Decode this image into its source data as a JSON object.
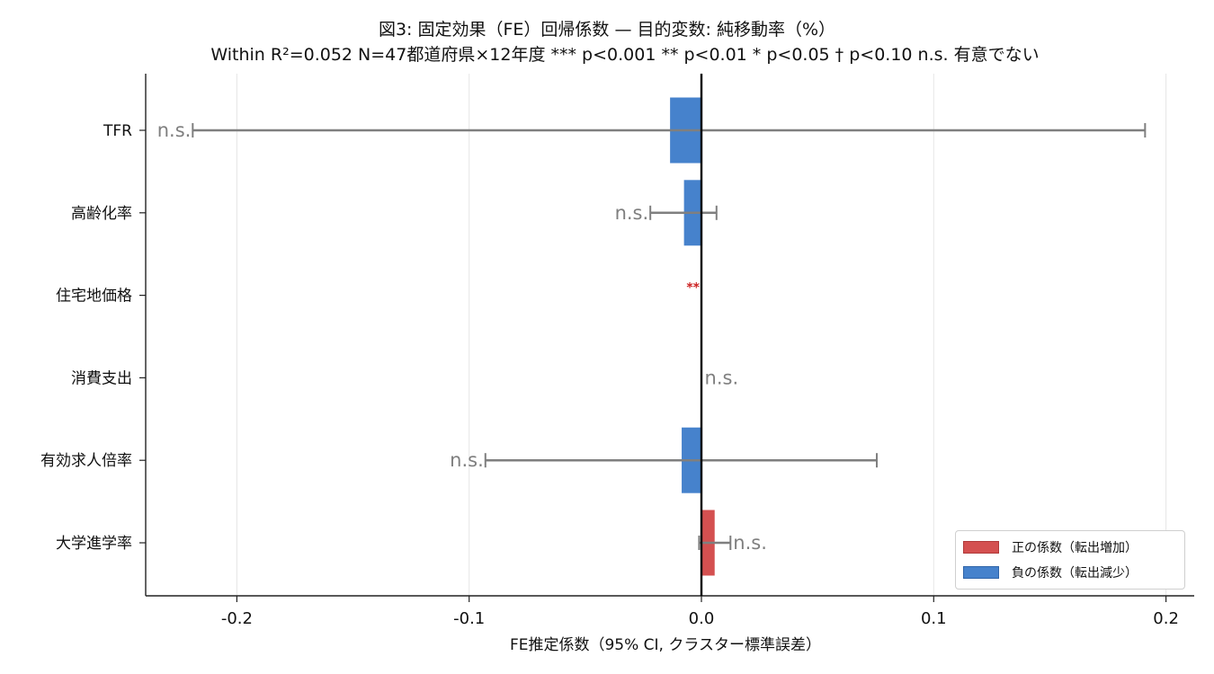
{
  "chart_data": {
    "type": "bar",
    "orientation": "horizontal",
    "title": "図3: 固定効果（FE）回帰係数 — 目的変数: 純移動率（%）",
    "subtitle": "Within R²=0.052  N=47都道府県×12年度  *** p<0.001  ** p<0.01  * p<0.05  † p<0.10  n.s. 有意でない",
    "xlabel": "FE推定係数（95% CI, クラスター標準誤差）",
    "ylabel": "",
    "xlim": [
      -0.24,
      0.21
    ],
    "xticks": [
      -0.2,
      -0.1,
      0.0,
      0.1,
      0.2
    ],
    "xtick_labels": [
      "-0.2",
      "-0.1",
      "0.0",
      "0.1",
      "0.2"
    ],
    "grid": true,
    "legend_position": "bottom-right",
    "categories": [
      "TFR",
      "高齢化率",
      "住宅地価格",
      "消費支出",
      "有効求人倍率",
      "大学進学率"
    ],
    "values": [
      -0.0135,
      -0.0075,
      -0.0002,
      0.0001,
      -0.0085,
      0.0057
    ],
    "ci_low": [
      -0.219,
      -0.022,
      -0.0003,
      0.0,
      -0.093,
      -0.001
    ],
    "ci_high": [
      0.191,
      0.0065,
      -0.0001,
      0.0002,
      0.0755,
      0.0125
    ],
    "significance": [
      "n.s.",
      "n.s.",
      "**",
      "n.s.",
      "n.s.",
      "n.s."
    ],
    "legend": [
      {
        "label": "正の係数（転出増加）",
        "color": "#d45050"
      },
      {
        "label": "負の係数（転出減少）",
        "color": "#4682cc"
      }
    ],
    "colors": {
      "positive": "#d45050",
      "negative": "#4682cc",
      "errorbar": "#7f7f7f",
      "significant": "#cc2222",
      "zero_line": "#000000"
    }
  }
}
